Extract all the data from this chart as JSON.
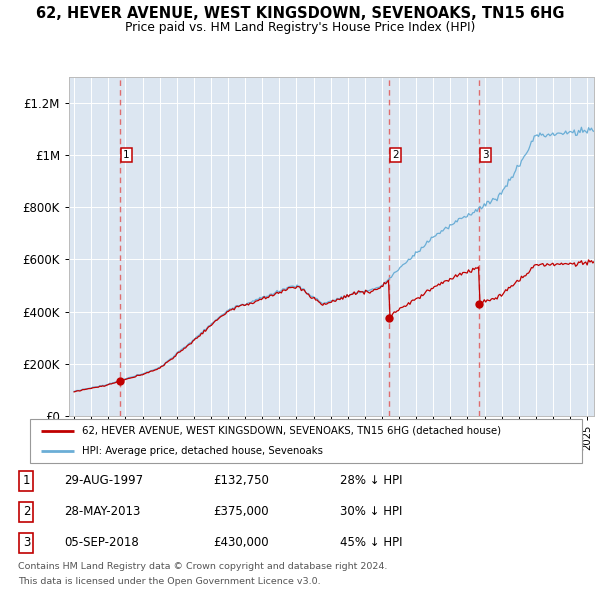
{
  "title1": "62, HEVER AVENUE, WEST KINGSDOWN, SEVENOAKS, TN15 6HG",
  "title2": "Price paid vs. HM Land Registry's House Price Index (HPI)",
  "ylabel_ticks": [
    "£0",
    "£200K",
    "£400K",
    "£600K",
    "£800K",
    "£1M",
    "£1.2M"
  ],
  "ytick_values": [
    0,
    200000,
    400000,
    600000,
    800000,
    1000000,
    1200000
  ],
  "ylim": [
    0,
    1300000
  ],
  "xlim_start": 1994.7,
  "xlim_end": 2025.4,
  "hpi_color": "#6baed6",
  "price_color": "#c00000",
  "bg_color": "#dce6f1",
  "sale_dates": [
    1997.66,
    2013.41,
    2018.68
  ],
  "sale_prices": [
    132750,
    375000,
    430000
  ],
  "sale_labels": [
    "1",
    "2",
    "3"
  ],
  "dashed_line_color": "#e06060",
  "legend_line1": "62, HEVER AVENUE, WEST KINGSDOWN, SEVENOAKS, TN15 6HG (detached house)",
  "legend_line2": "HPI: Average price, detached house, Sevenoaks",
  "table_rows": [
    [
      "1",
      "29-AUG-1997",
      "£132,750",
      "28% ↓ HPI"
    ],
    [
      "2",
      "28-MAY-2013",
      "£375,000",
      "30% ↓ HPI"
    ],
    [
      "3",
      "05-SEP-2018",
      "£430,000",
      "45% ↓ HPI"
    ]
  ],
  "footer1": "Contains HM Land Registry data © Crown copyright and database right 2024.",
  "footer2": "This data is licensed under the Open Government Licence v3.0."
}
